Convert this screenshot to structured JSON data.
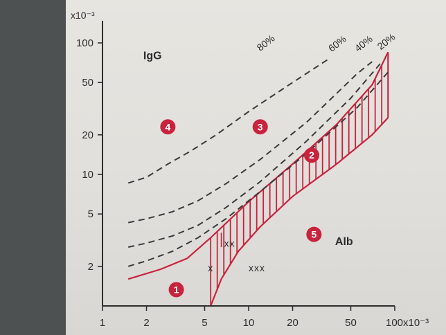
{
  "colors": {
    "page_bg": "#4d5151",
    "paper": "#e3e1dd",
    "axis": "#2e2e2e",
    "dashed": "#3a3a3a",
    "accent_red": "#c8223c",
    "badge_text": "#ffffff"
  },
  "chart_data": {
    "type": "line",
    "title": "",
    "x_scale": "log",
    "y_scale": "log",
    "xlim": [
      1,
      100
    ],
    "ylim": [
      1,
      100
    ],
    "x_unit": "x10^-3",
    "y_unit": "x10^-3",
    "x_ticks": [
      {
        "value": 1,
        "label": "1"
      },
      {
        "value": 2,
        "label": "2"
      },
      {
        "value": 5,
        "label": "5"
      },
      {
        "value": 10,
        "label": "10"
      },
      {
        "value": 20,
        "label": "20"
      },
      {
        "value": 50,
        "label": "50"
      },
      {
        "value": 100,
        "label": "100x10⁻³"
      }
    ],
    "y_ticks": [
      {
        "value": 2,
        "label": "2"
      },
      {
        "value": 5,
        "label": "5"
      },
      {
        "value": 10,
        "label": "10"
      },
      {
        "value": 20,
        "label": "20"
      },
      {
        "value": 50,
        "label": "50"
      },
      {
        "value": 100,
        "label": "100"
      }
    ],
    "y_unit_label": "x10⁻³",
    "axis_names": {
      "x": "Alb",
      "y": "IgG"
    },
    "series": [
      {
        "name": "80%",
        "style": "dashed",
        "label_at": [
          12.0,
          86.0
        ],
        "x": [
          1.5,
          2.0,
          2.8,
          4.0,
          6.0,
          10.0,
          20.0,
          35.0
        ],
        "y": [
          8.6,
          9.5,
          12.0,
          15.0,
          20.0,
          30.0,
          50.0,
          75.0
        ]
      },
      {
        "name": "60%",
        "style": "dashed",
        "label_at": [
          37.0,
          85.0
        ],
        "x": [
          1.5,
          2.0,
          3.0,
          4.5,
          7.0,
          12.0,
          25.0,
          55.0,
          70.0
        ],
        "y": [
          4.3,
          4.6,
          5.2,
          6.3,
          8.5,
          13.0,
          25.0,
          58.0,
          72.0
        ]
      },
      {
        "name": "40%",
        "style": "dashed",
        "label_at": [
          56.0,
          85.0
        ],
        "x": [
          1.5,
          2.0,
          3.0,
          4.5,
          7.0,
          12.0,
          25.0,
          50.0,
          80.0
        ],
        "y": [
          2.8,
          3.0,
          3.4,
          4.1,
          5.6,
          8.8,
          18.0,
          38.0,
          70.0
        ]
      },
      {
        "name": "20%",
        "style": "dashed",
        "label_at": [
          80.0,
          88.0
        ],
        "x": [
          1.5,
          2.0,
          3.0,
          4.5,
          7.0,
          12.0,
          25.0,
          55.0,
          90.0
        ],
        "y": [
          2.0,
          2.2,
          2.6,
          3.3,
          4.6,
          7.4,
          14.5,
          32.0,
          60.0
        ]
      }
    ],
    "reference_band": {
      "upper": {
        "x": [
          1.5,
          2.5,
          3.8,
          5.5,
          10.0,
          20.0,
          40.0,
          70.0,
          90.0
        ],
        "y": [
          1.6,
          1.9,
          2.3,
          3.3,
          6.2,
          12.0,
          24.0,
          48.0,
          85.0
        ]
      },
      "lower": {
        "x": [
          5.5,
          6.5,
          8.5,
          12.0,
          20.0,
          40.0,
          70.0,
          90.0
        ],
        "y": [
          1.0,
          1.6,
          2.6,
          4.0,
          6.8,
          12.0,
          20.0,
          27.0
        ]
      },
      "hatch_from_x": 5.5
    },
    "markers": [
      {
        "label": "x",
        "x": 5.5,
        "y": 1.95
      },
      {
        "label": "xx",
        "x": 6.8,
        "y": 3.0
      },
      {
        "label": "xxx",
        "x": 10.0,
        "y": 1.95
      }
    ],
    "regions": [
      {
        "number": "1",
        "x": 3.2,
        "y": 1.33
      },
      {
        "number": "2",
        "x": 27.0,
        "y": 14.0
      },
      {
        "number": "3",
        "x": 12.0,
        "y": 23.0
      },
      {
        "number": "4",
        "x": 2.8,
        "y": 23.0
      },
      {
        "number": "5",
        "x": 28.0,
        "y": 3.5
      }
    ],
    "grid": false,
    "legend": "none"
  }
}
